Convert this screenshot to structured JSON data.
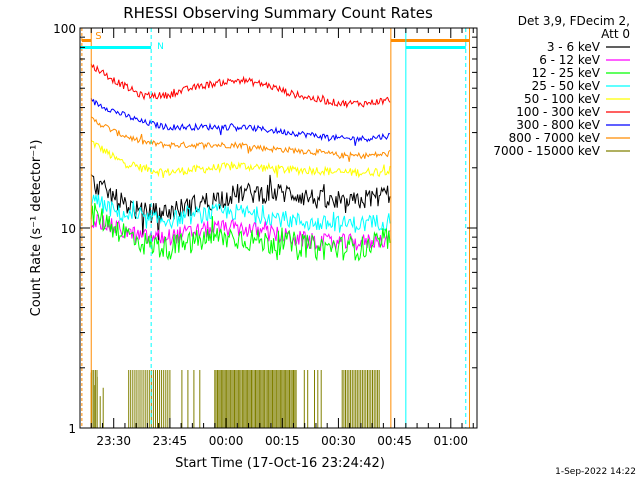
{
  "chart_data": {
    "type": "line",
    "title": "RHESSI Observing Summary Count Rates",
    "xlabel": "Start Time (17-Oct-16 23:24:42)",
    "ylabel": "Count Rate (s⁻¹ detector⁻¹)",
    "yscale": "log",
    "ylim": [
      1,
      100
    ],
    "xlim_minutes": [
      -3,
      103
    ],
    "x_ticks": [
      {
        "minute": 6,
        "label": "23:30"
      },
      {
        "minute": 21,
        "label": "23:45"
      },
      {
        "minute": 36,
        "label": "00:00"
      },
      {
        "minute": 51,
        "label": "00:15"
      },
      {
        "minute": 66,
        "label": "00:30"
      },
      {
        "minute": 81,
        "label": "00:45"
      },
      {
        "minute": 96,
        "label": "01:00"
      }
    ],
    "y_tick_labels": [
      {
        "value": 100,
        "label": "100"
      },
      {
        "value": 10,
        "label": "10"
      },
      {
        "value": 1,
        "label": "1"
      }
    ],
    "legend_header": [
      "Det 3,9, FDecim 2,",
      "Att 0"
    ],
    "legend_placement": "right",
    "series": [
      {
        "name": "3 - 6 keV",
        "color": "#000000",
        "values": [
          17,
          14,
          12,
          12,
          13,
          14,
          15,
          15,
          15,
          14,
          13,
          14,
          15
        ]
      },
      {
        "name": "6 - 12 keV",
        "color": "#ff00ff",
        "values": [
          11,
          10,
          9,
          9,
          9.5,
          10,
          10,
          9.5,
          9,
          8.5,
          8.5,
          8.5,
          9
        ]
      },
      {
        "name": "12 - 25 keV",
        "color": "#00ff00",
        "values": [
          12,
          10,
          8.5,
          8,
          8.5,
          9,
          9,
          8.5,
          8.5,
          8,
          8,
          8,
          9
        ]
      },
      {
        "name": "25 - 50 keV",
        "color": "#00ffff",
        "values": [
          14,
          12,
          11,
          11,
          11.5,
          12,
          12,
          11.5,
          11,
          10.5,
          10.5,
          10.5,
          11
        ]
      },
      {
        "name": "50 - 100 keV",
        "color": "#ffff00",
        "values": [
          27,
          22,
          20,
          19,
          19.5,
          20,
          20.5,
          20,
          19.5,
          19.5,
          19,
          19,
          19.5
        ]
      },
      {
        "name": "100 - 300 keV",
        "color": "#ff0000",
        "values": [
          65,
          54,
          46,
          46,
          50,
          53,
          55,
          52,
          47,
          44,
          42,
          42,
          44
        ]
      },
      {
        "name": "300 - 800 keV",
        "color": "#0000ff",
        "values": [
          43,
          38,
          34,
          32,
          32,
          32,
          32,
          31,
          30,
          29,
          28,
          28,
          29
        ]
      },
      {
        "name": "800 - 7000 keV",
        "color": "#ff8c00",
        "values": [
          35,
          30,
          27,
          26,
          26,
          26,
          26,
          25,
          24.5,
          24,
          23,
          23,
          23.5
        ]
      },
      {
        "name": "7000 - 15000 keV",
        "color": "#808000",
        "values": []
      }
    ],
    "series_time_range_minutes": [
      0,
      80
    ],
    "annotations": {
      "flag_s": "S",
      "flag_n": "N",
      "saa_intervals_minutes": [
        [
          -2.5,
          0
        ],
        [
          80,
          101
        ]
      ],
      "night_intervals_minutes": [
        [
          -3,
          16
        ],
        [
          84,
          100
        ]
      ],
      "note": "orange vertical lines and bars mark SAA; cyan dashed lines and bars mark Night"
    },
    "grid": false
  },
  "timestamp": "1-Sep-2022 14:22"
}
